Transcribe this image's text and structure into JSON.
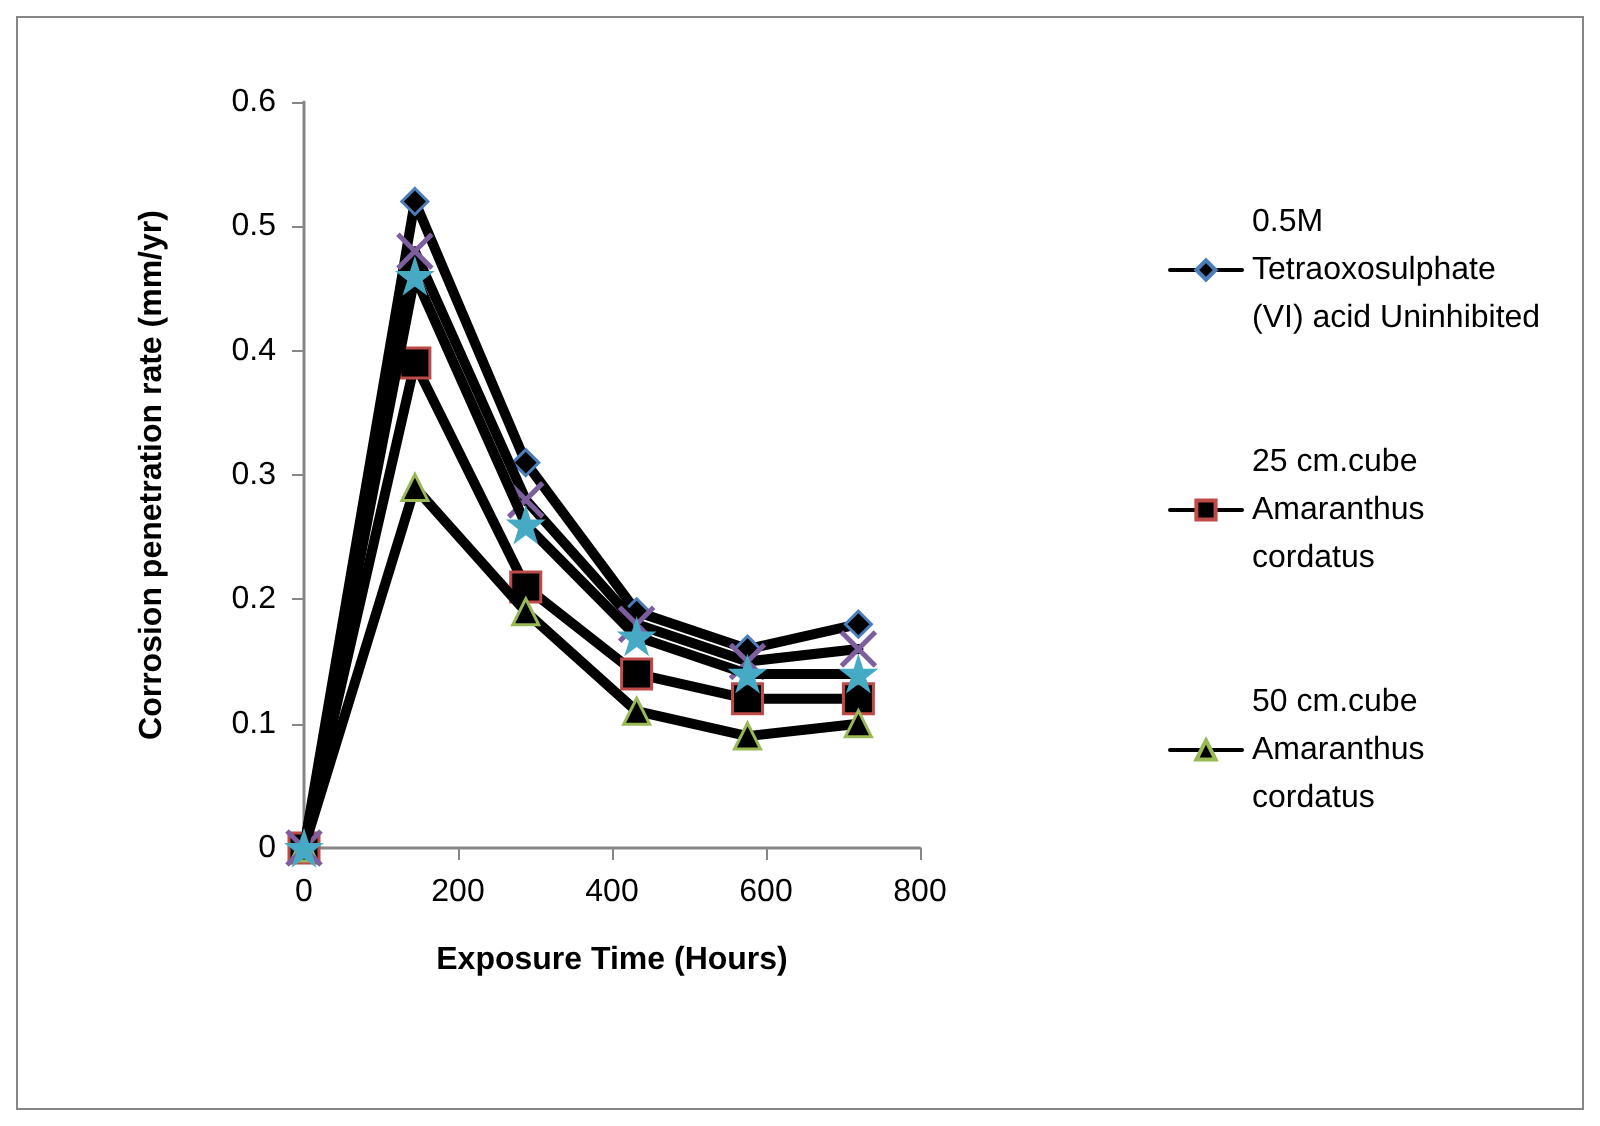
{
  "chart_data": {
    "type": "line",
    "xlabel": "Exposure Time (Hours)",
    "ylabel": "Corrosion penetration rate (mm/yr)",
    "x": [
      0,
      144,
      288,
      432,
      576,
      720
    ],
    "series": [
      {
        "name": "0.5M Tetraoxosulphate (VI) acid Uninhibited",
        "color": "#4a7ebb",
        "marker": "diamond",
        "values": [
          0,
          0.52,
          0.31,
          0.19,
          0.16,
          0.18
        ]
      },
      {
        "name": "25 cm.cube Amaranthus cordatus",
        "color": "#be4b48",
        "marker": "square",
        "values": [
          0,
          0.39,
          0.21,
          0.14,
          0.12,
          0.12
        ]
      },
      {
        "name": "50 cm.cube Amaranthus cordatus",
        "color": "#98b954",
        "marker": "triangle",
        "values": [
          0,
          0.29,
          0.19,
          0.11,
          0.09,
          0.1
        ]
      },
      {
        "color": "#7d5fa0",
        "marker": "cross",
        "values": [
          0,
          0.48,
          0.28,
          0.18,
          0.15,
          0.16
        ]
      },
      {
        "color": "#46aac5",
        "marker": "star",
        "values": [
          0,
          0.46,
          0.26,
          0.17,
          0.14,
          0.14
        ]
      }
    ],
    "xlim": [
      0,
      800
    ],
    "xticks": [
      0,
      200,
      400,
      600,
      800
    ],
    "ylim": [
      0,
      0.6
    ],
    "yticks": [
      0,
      0.1,
      0.2,
      0.3,
      0.4,
      0.5,
      0.6
    ],
    "grid": false,
    "legend": "right",
    "line_style": "solid"
  }
}
